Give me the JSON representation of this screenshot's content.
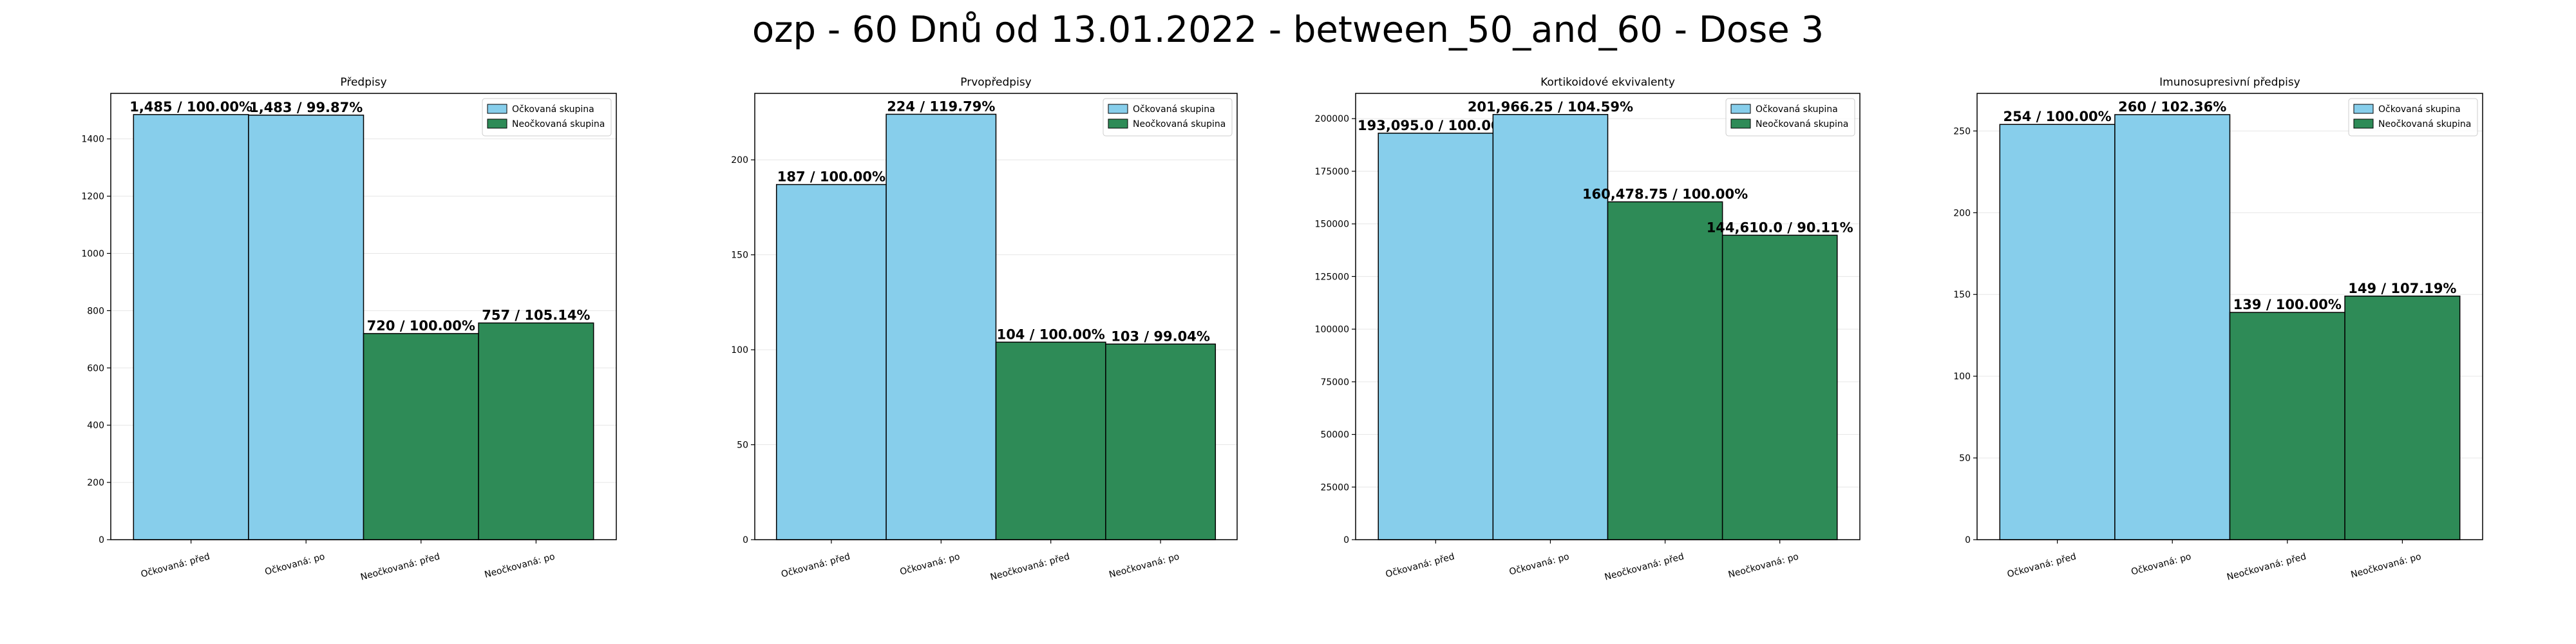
{
  "figure": {
    "title": "ozp - 60 Dnů od 13.01.2022 - between_50_and_60 - Dose 3"
  },
  "colors": {
    "vaccinated": "#87ceeb",
    "unvaccinated": "#2e8b57",
    "grid": "#e6e6e6"
  },
  "chart_data": [
    {
      "type": "bar",
      "title": "Předpisy",
      "categories": [
        "Očkovaná: před",
        "Očkovaná: po",
        "Neočkovaná: před",
        "Neočkovaná: po"
      ],
      "values": [
        1485,
        1483,
        720,
        757
      ],
      "data_labels": [
        "1,485 / 100.00%",
        "1,483 / 99.87%",
        "720 / 100.00%",
        "757 / 105.14%"
      ],
      "bar_groups": [
        "vaccinated",
        "vaccinated",
        "unvaccinated",
        "unvaccinated"
      ],
      "legend": [
        "Očkovaná skupina",
        "Neočkovaná skupina"
      ],
      "legend_position": "top-right",
      "yticks": [
        0,
        200,
        400,
        600,
        800,
        1000,
        1200,
        1400
      ],
      "ytick_labels": [
        "0",
        "200",
        "400",
        "600",
        "800",
        "1000",
        "1200",
        "1400"
      ],
      "ylim": [
        0,
        1559
      ],
      "grid": "y"
    },
    {
      "type": "bar",
      "title": "Prvopředpisy",
      "categories": [
        "Očkovaná: před",
        "Očkovaná: po",
        "Neočkovaná: před",
        "Neočkovaná: po"
      ],
      "values": [
        187,
        224,
        104,
        103
      ],
      "data_labels": [
        "187 / 100.00%",
        "224 / 119.79%",
        "104 / 100.00%",
        "103 / 99.04%"
      ],
      "bar_groups": [
        "vaccinated",
        "vaccinated",
        "unvaccinated",
        "unvaccinated"
      ],
      "legend": [
        "Očkovaná skupina",
        "Neočkovaná skupina"
      ],
      "legend_position": "top-right",
      "yticks": [
        0,
        50,
        100,
        150,
        200
      ],
      "ytick_labels": [
        "0",
        "50",
        "100",
        "150",
        "200"
      ],
      "ylim": [
        0,
        235
      ],
      "grid": "y"
    },
    {
      "type": "bar",
      "title": "Kortikoidové ekvivalenty",
      "categories": [
        "Očkovaná: před",
        "Očkovaná: po",
        "Neočkovaná: před",
        "Neočkovaná: po"
      ],
      "values": [
        193095.0,
        201966.25,
        160478.75,
        144610.0
      ],
      "data_labels": [
        "193,095.0 / 100.00%",
        "201,966.25 / 104.59%",
        "160,478.75 / 100.00%",
        "144,610.0 / 90.11%"
      ],
      "bar_groups": [
        "vaccinated",
        "vaccinated",
        "unvaccinated",
        "unvaccinated"
      ],
      "legend": [
        "Očkovaná skupina",
        "Neočkovaná skupina"
      ],
      "legend_position": "top-right",
      "yticks": [
        0,
        25000,
        50000,
        75000,
        100000,
        125000,
        150000,
        175000,
        200000
      ],
      "ytick_labels": [
        "0",
        "25000",
        "50000",
        "75000",
        "100000",
        "125000",
        "150000",
        "175000",
        "200000"
      ],
      "ylim": [
        0,
        212000
      ],
      "grid": "y"
    },
    {
      "type": "bar",
      "title": "Imunosupresivní předpisy",
      "categories": [
        "Očkovaná: před",
        "Očkovaná: po",
        "Neočkovaná: před",
        "Neočkovaná: po"
      ],
      "values": [
        254,
        260,
        139,
        149
      ],
      "data_labels": [
        "254 / 100.00%",
        "260 / 102.36%",
        "139 / 100.00%",
        "149 / 107.19%"
      ],
      "bar_groups": [
        "vaccinated",
        "vaccinated",
        "unvaccinated",
        "unvaccinated"
      ],
      "legend": [
        "Očkovaná skupina",
        "Neočkovaná skupina"
      ],
      "legend_position": "top-right",
      "yticks": [
        0,
        50,
        100,
        150,
        200,
        250
      ],
      "ytick_labels": [
        "0",
        "50",
        "100",
        "150",
        "200",
        "250"
      ],
      "ylim": [
        0,
        273
      ],
      "grid": "y"
    }
  ]
}
